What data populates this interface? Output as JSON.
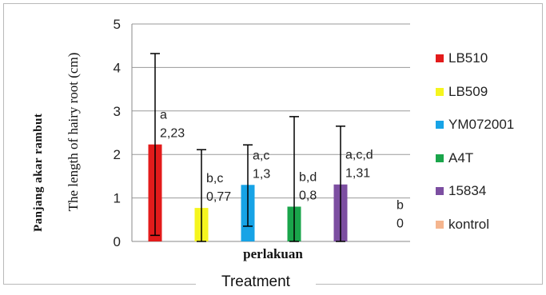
{
  "chart_data": {
    "type": "bar",
    "ylabel": "The length of hairy root (cm)",
    "ylabel_overprint": "Panjang akar rambut",
    "xlabel_sub": "perlakuan",
    "xlabel": "Treatment",
    "ylim": [
      0,
      5
    ],
    "yticks": [
      "0",
      "1",
      "2",
      "3",
      "4",
      "5"
    ],
    "grid": true,
    "legend_position": "right",
    "categories": [
      "LB510",
      "LB509",
      "YM072001",
      "A4T",
      "15834",
      "kontrol"
    ],
    "values": [
      2.23,
      0.77,
      1.3,
      0.8,
      1.31,
      0
    ],
    "error_upper": [
      4.32,
      2.11,
      2.22,
      2.87,
      2.65,
      0
    ],
    "error_lower": [
      0.14,
      0.0,
      0.35,
      0.0,
      0.0,
      0
    ],
    "value_labels": [
      "2,23",
      "0,77",
      "1,3",
      "0,8",
      "1,31",
      "0"
    ],
    "letter_labels": [
      "a",
      "b,c",
      "a,c",
      "b,d",
      "a,c,d",
      "b"
    ],
    "colors": [
      "#e31b1b",
      "#f5f51e",
      "#17a3e6",
      "#1aa54b",
      "#7c4ea1",
      "#f5b58e"
    ]
  }
}
